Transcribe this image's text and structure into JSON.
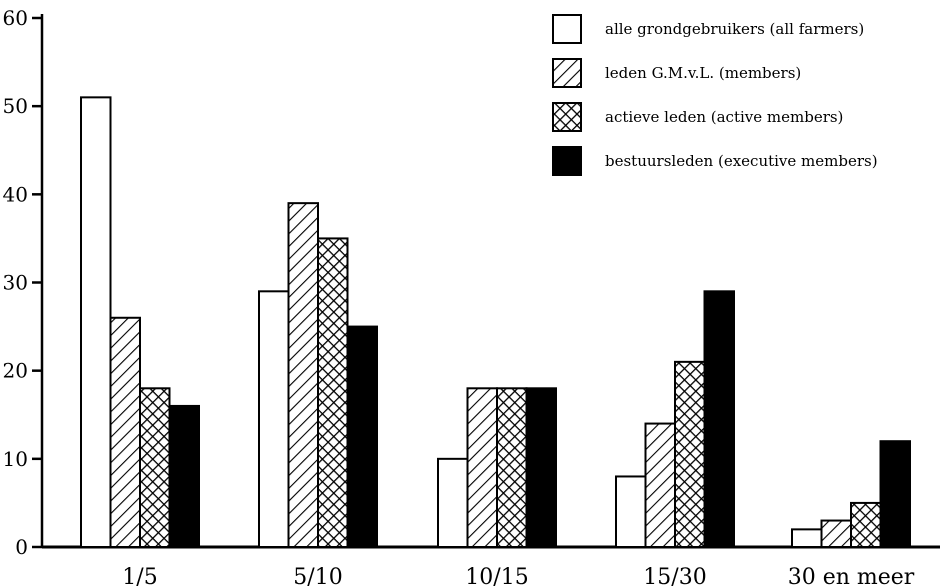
{
  "chart_data": {
    "type": "bar",
    "categories": [
      "1/5",
      "5/10",
      "10/15",
      "15/30",
      "30 en meer"
    ],
    "series": [
      {
        "name": "alle grondgebruikers (all farmers)",
        "pattern": "empty",
        "values": [
          51,
          29,
          10,
          8,
          2
        ]
      },
      {
        "name": "leden G.M.v.L. (members)",
        "pattern": "hatch",
        "values": [
          26,
          39,
          18,
          14,
          3
        ]
      },
      {
        "name": "actieve leden (active members)",
        "pattern": "crosshatch",
        "values": [
          18,
          35,
          18,
          21,
          5
        ]
      },
      {
        "name": "bestuursleden (executive members)",
        "pattern": "solid",
        "values": [
          16,
          25,
          18,
          29,
          12
        ]
      }
    ],
    "yticks": [
      0,
      10,
      20,
      30,
      40,
      50,
      60
    ],
    "ylim": [
      0,
      60
    ],
    "grid": false,
    "legend_position": "top-right",
    "colors": {
      "ink": "#000000",
      "paper": "#ffffff"
    }
  }
}
